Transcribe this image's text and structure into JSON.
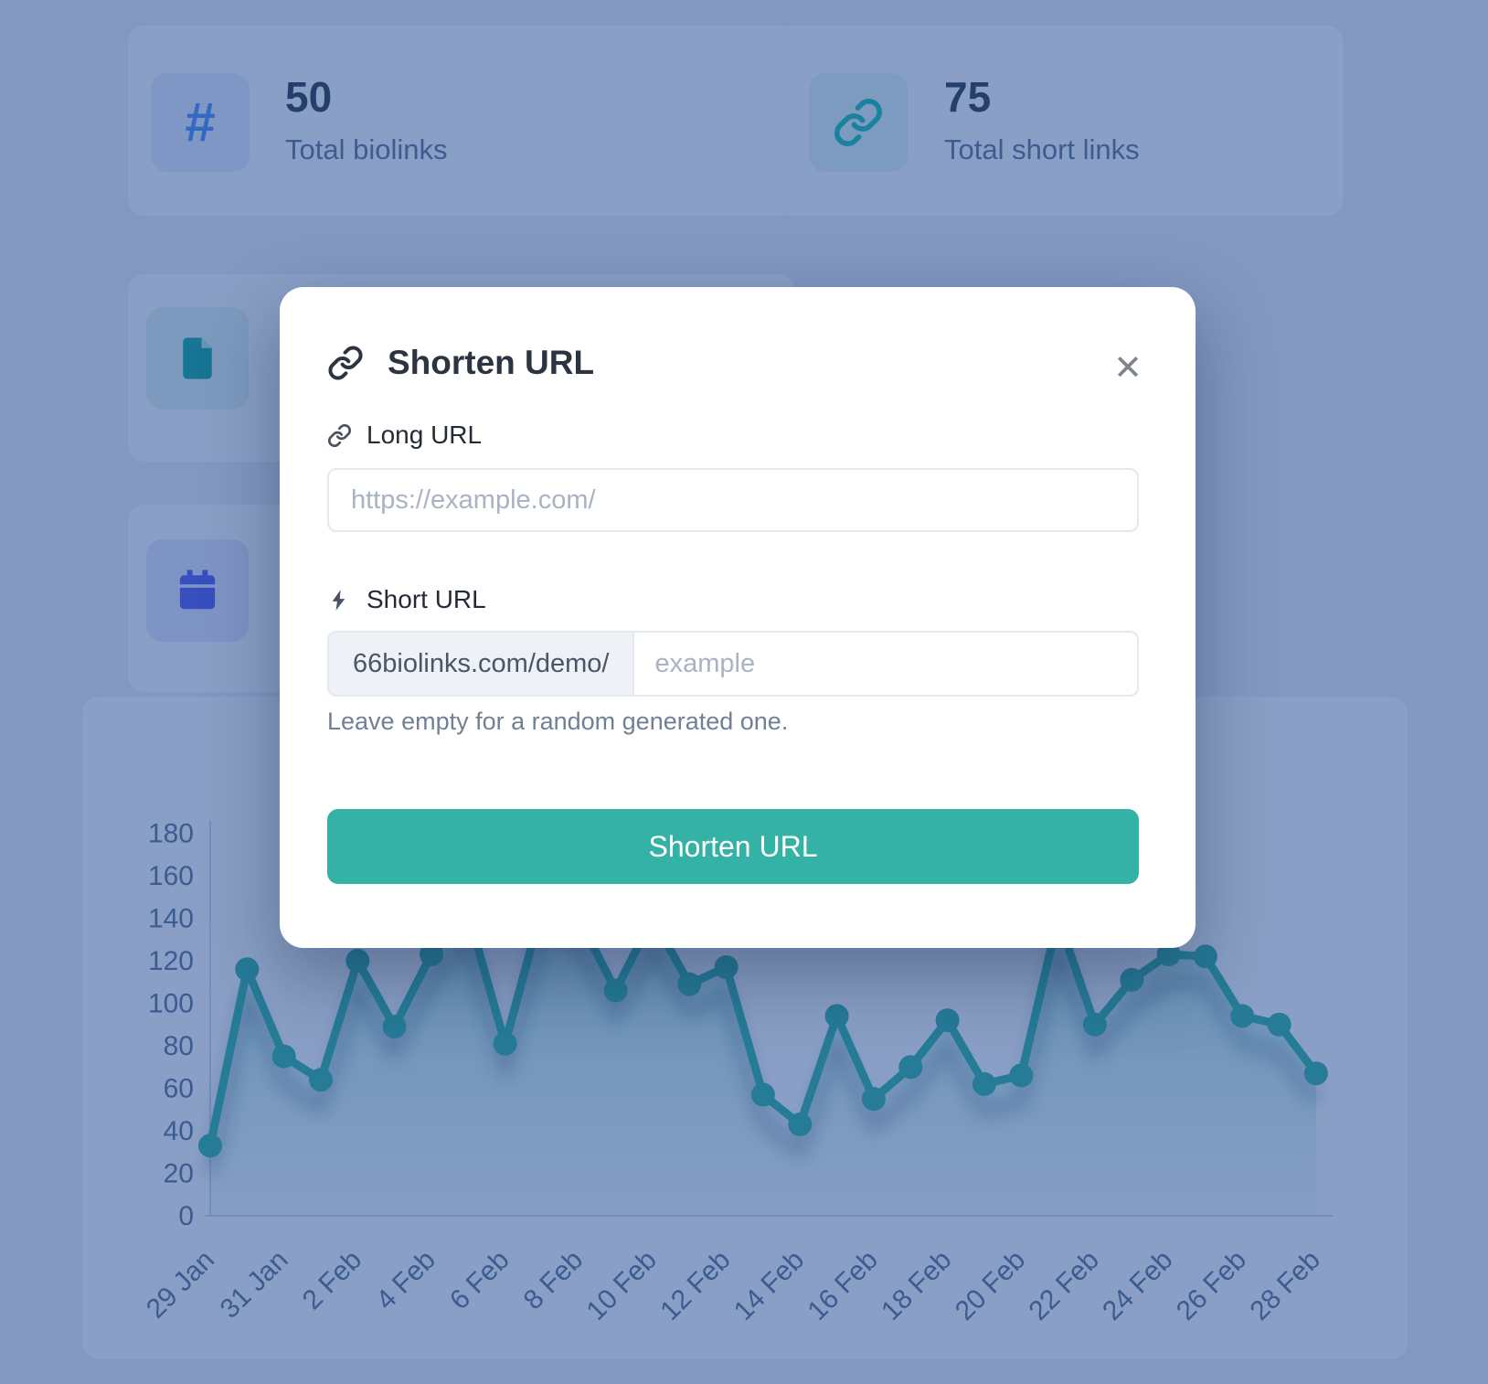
{
  "stats": {
    "biolinks": {
      "value": "50",
      "label": "Total biolinks"
    },
    "short_links": {
      "value": "75",
      "label": "Total short links"
    }
  },
  "modal": {
    "title": "Shorten URL",
    "long_url": {
      "label": "Long URL",
      "placeholder": "https://example.com/",
      "value": ""
    },
    "short_url": {
      "label": "Short URL",
      "prefix": "66biolinks.com/demo/",
      "placeholder": "example",
      "value": ""
    },
    "help_text": "Leave empty for a random generated one.",
    "submit_label": "Shorten URL"
  },
  "icons": {
    "hash_glyph": "#",
    "close_glyph": "✕"
  },
  "chart_data": {
    "type": "line",
    "title": "",
    "xlabel": "",
    "ylabel": "",
    "ylim": [
      0,
      180
    ],
    "ytick_step": 20,
    "tick_every": 2,
    "legend": "none",
    "grid": "axes-only",
    "line_color": "#2fb5a0",
    "dates": [
      "29 Jan",
      "30 Jan",
      "31 Jan",
      "1 Feb",
      "2 Feb",
      "3 Feb",
      "4 Feb",
      "5 Feb",
      "6 Feb",
      "7 Feb",
      "8 Feb",
      "9 Feb",
      "10 Feb",
      "11 Feb",
      "12 Feb",
      "13 Feb",
      "14 Feb",
      "15 Feb",
      "16 Feb",
      "17 Feb",
      "18 Feb",
      "19 Feb",
      "20 Feb",
      "21 Feb",
      "22 Feb",
      "23 Feb",
      "24 Feb",
      "25 Feb",
      "26 Feb",
      "27 Feb",
      "28 Feb"
    ],
    "values": [
      33,
      116,
      75,
      64,
      120,
      89,
      123,
      142,
      81,
      145,
      140,
      106,
      140,
      109,
      117,
      57,
      43,
      94,
      55,
      70,
      92,
      62,
      66,
      140,
      90,
      111,
      123,
      122,
      94,
      90,
      67
    ]
  },
  "colors": {
    "accent_button": "#35b2a6",
    "chart_line": "#2fb5a0",
    "backdrop": "rgba(30,70,143,0.52)",
    "hash_icon": "#4d8dff",
    "link_icon": "#13c2ad",
    "document_icon": "#0fa896",
    "calendar_icon": "#5156f0"
  }
}
